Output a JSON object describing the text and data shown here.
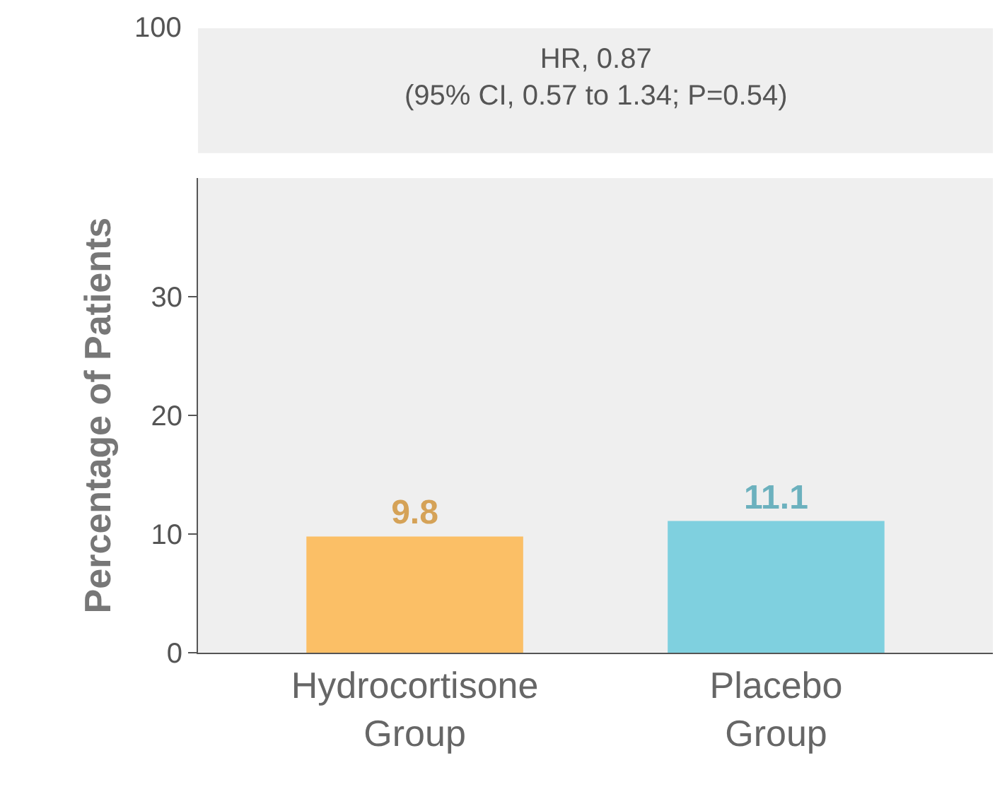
{
  "chart_data": {
    "type": "bar",
    "ylabel": "Percentage of Patients",
    "categories": [
      "Hydrocortisone Group",
      "Placebo Group"
    ],
    "values": [
      9.8,
      11.1
    ],
    "colors": [
      "#fbbf66",
      "#7fd0df"
    ],
    "data_labels": true,
    "ylim": [
      0,
      40
    ],
    "yticks": [
      0,
      10,
      20,
      30
    ],
    "annotations": [
      "HR, 0.87\n(95% CI, 0.57 to 1.34; P=0.54)",
      "100"
    ]
  }
}
